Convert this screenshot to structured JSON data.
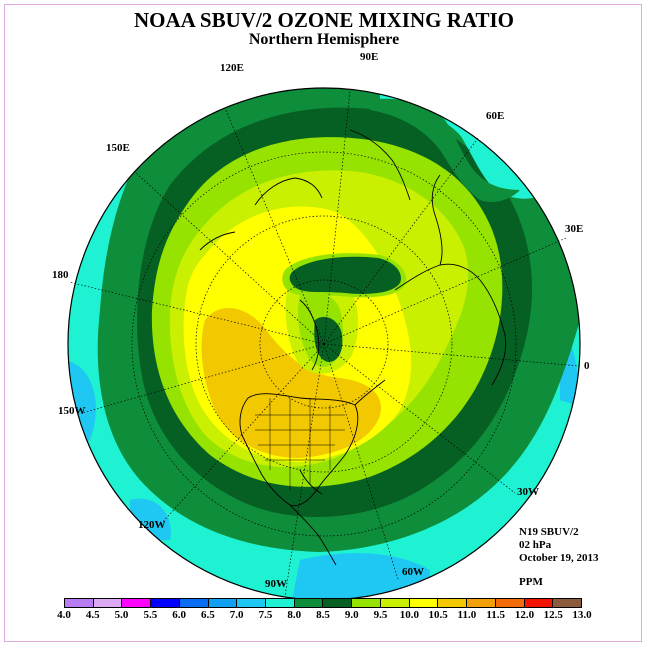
{
  "title": "NOAA SBUV/2 OZONE MIXING RATIO",
  "subtitle": "Northern Hemisphere",
  "lon_labels": {
    "e90": "90E",
    "e120": "120E",
    "e60": "60E",
    "e150": "150E",
    "e30": "30E",
    "d180": "180",
    "d0": "0",
    "w150": "150W",
    "w30": "30W",
    "w120": "120W",
    "w60": "60W",
    "w90": "90W"
  },
  "info": {
    "instrument": "N19 SBUV/2",
    "level": "02 hPa",
    "date": "October 19, 2013",
    "units": "PPM"
  },
  "colorbar": {
    "colors": [
      "#b87cf2",
      "#dcaaf4",
      "#ff00ff",
      "#0000ff",
      "#0a6ef2",
      "#12a0f2",
      "#1ec8f2",
      "#1ef2d2",
      "#0e8e3a",
      "#066024",
      "#96e200",
      "#c8f000",
      "#ffff00",
      "#f2c800",
      "#f2a00a",
      "#f26c0a",
      "#f21400",
      "#8c5a3c"
    ],
    "ticks": [
      "4.0",
      "4.5",
      "5.0",
      "5.5",
      "6.0",
      "6.5",
      "7.0",
      "7.5",
      "8.0",
      "8.5",
      "9.0",
      "9.5",
      "10.0",
      "10.5",
      "11.0",
      "11.5",
      "12.0",
      "12.5",
      "13.0"
    ]
  }
}
